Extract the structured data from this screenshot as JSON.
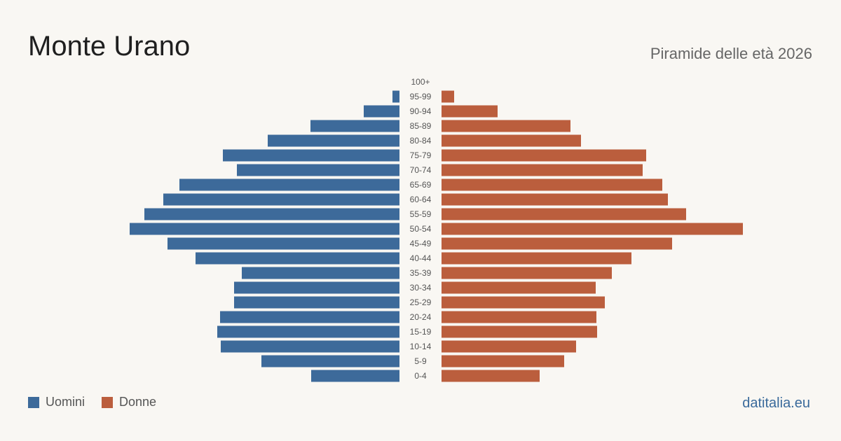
{
  "header": {
    "title": "Monte Urano",
    "subtitle": "Piramide delle età 2026"
  },
  "legend": {
    "men_label": "Uomini",
    "women_label": "Donne"
  },
  "brand": "datitalia.eu",
  "colors": {
    "men": "#3d6a9a",
    "women": "#bb5e3d",
    "background": "#f9f7f3"
  },
  "chart_data": {
    "type": "bar",
    "orientation": "horizontal-pyramid",
    "title": "Monte Urano",
    "subtitle": "Piramide delle età 2026",
    "categories": [
      "100+",
      "95-99",
      "90-94",
      "85-89",
      "80-84",
      "75-79",
      "70-74",
      "65-69",
      "60-64",
      "55-59",
      "50-54",
      "45-49",
      "40-44",
      "35-39",
      "30-34",
      "25-29",
      "20-24",
      "15-19",
      "10-14",
      "5-9",
      "0-4"
    ],
    "series": [
      {
        "name": "Uomini",
        "values": [
          0,
          10,
          51,
          127,
          188,
          252,
          232,
          314,
          337,
          364,
          385,
          331,
          291,
          225,
          236,
          236,
          256,
          260,
          255,
          197,
          126
        ]
      },
      {
        "name": "Donne",
        "values": [
          0,
          18,
          80,
          184,
          199,
          292,
          287,
          315,
          323,
          349,
          430,
          329,
          271,
          243,
          220,
          233,
          221,
          222,
          192,
          175,
          140
        ]
      }
    ],
    "grid": false,
    "legend_position": "bottom-left"
  }
}
